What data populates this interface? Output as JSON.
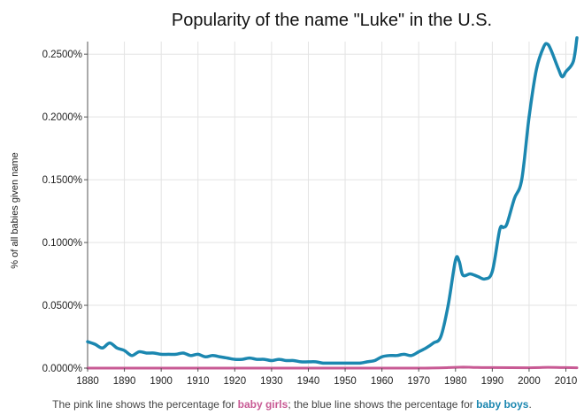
{
  "chart_data": {
    "type": "line",
    "title": "Popularity of the name \"Luke\" in the U.S.",
    "xlabel": "",
    "ylabel": "% of all babies given name",
    "xlim": [
      1880,
      2013
    ],
    "ylim": [
      0,
      0.0026
    ],
    "grid": true,
    "x_ticks": [
      1880,
      1890,
      1900,
      1910,
      1920,
      1930,
      1940,
      1950,
      1960,
      1970,
      1980,
      1990,
      2000,
      2010
    ],
    "y_ticks": [
      {
        "value": 0.0,
        "label": "0.0000%"
      },
      {
        "value": 0.0005,
        "label": "0.0500%"
      },
      {
        "value": 0.001,
        "label": "0.1000%"
      },
      {
        "value": 0.0015,
        "label": "0.1500%"
      },
      {
        "value": 0.002,
        "label": "0.2000%"
      },
      {
        "value": 0.0025,
        "label": "0.2500%"
      }
    ],
    "series": [
      {
        "color": "#1b87b0",
        "x": [
          1880,
          1882,
          1884,
          1886,
          1888,
          1890,
          1892,
          1894,
          1896,
          1898,
          1900,
          1902,
          1904,
          1906,
          1908,
          1910,
          1912,
          1914,
          1916,
          1918,
          1920,
          1922,
          1924,
          1926,
          1928,
          1930,
          1932,
          1934,
          1936,
          1938,
          1940,
          1942,
          1944,
          1946,
          1948,
          1950,
          1952,
          1954,
          1956,
          1958,
          1960,
          1962,
          1964,
          1966,
          1968,
          1970,
          1972,
          1974,
          1976,
          1978,
          1980,
          1981,
          1982,
          1984,
          1986,
          1988,
          1990,
          1992,
          1993,
          1994,
          1996,
          1998,
          2000,
          2002,
          2004,
          2005,
          2006,
          2008,
          2009,
          2010,
          2012,
          2013
        ],
        "values": [
          0.00021,
          0.00019,
          0.00016,
          0.0002,
          0.00016,
          0.00014,
          0.0001,
          0.00013,
          0.00012,
          0.00012,
          0.00011,
          0.00011,
          0.00011,
          0.00012,
          0.0001,
          0.00011,
          9e-05,
          0.0001,
          9e-05,
          8e-05,
          7e-05,
          7e-05,
          8e-05,
          7e-05,
          7e-05,
          6e-05,
          7e-05,
          6e-05,
          6e-05,
          5e-05,
          5e-05,
          5e-05,
          4e-05,
          4e-05,
          4e-05,
          4e-05,
          4e-05,
          4e-05,
          5e-05,
          6e-05,
          9e-05,
          0.0001,
          0.0001,
          0.00011,
          0.0001,
          0.00013,
          0.00016,
          0.0002,
          0.00025,
          0.0005,
          0.00086,
          0.00085,
          0.00074,
          0.00075,
          0.00073,
          0.00071,
          0.00077,
          0.0011,
          0.00112,
          0.00115,
          0.00135,
          0.0015,
          0.002,
          0.00238,
          0.00256,
          0.00258,
          0.00253,
          0.00238,
          0.00232,
          0.00236,
          0.00244,
          0.00263
        ]
      },
      {
        "color": "#c85a94",
        "x": [
          1880,
          1900,
          1920,
          1940,
          1960,
          1970,
          1978,
          1982,
          1986,
          1990,
          2000,
          2005,
          2010,
          2013
        ],
        "values": [
          0.0,
          0.0,
          0.0,
          0.0,
          0.0,
          0.0,
          4e-06,
          8e-06,
          5e-06,
          4e-06,
          3e-06,
          6e-06,
          4e-06,
          3e-06
        ]
      }
    ]
  },
  "caption": {
    "prefix": "The pink line shows the percentage for ",
    "girls": "baby girls",
    "middle": "; the blue line shows the percentage for ",
    "boys": "baby boys",
    "suffix": "."
  }
}
